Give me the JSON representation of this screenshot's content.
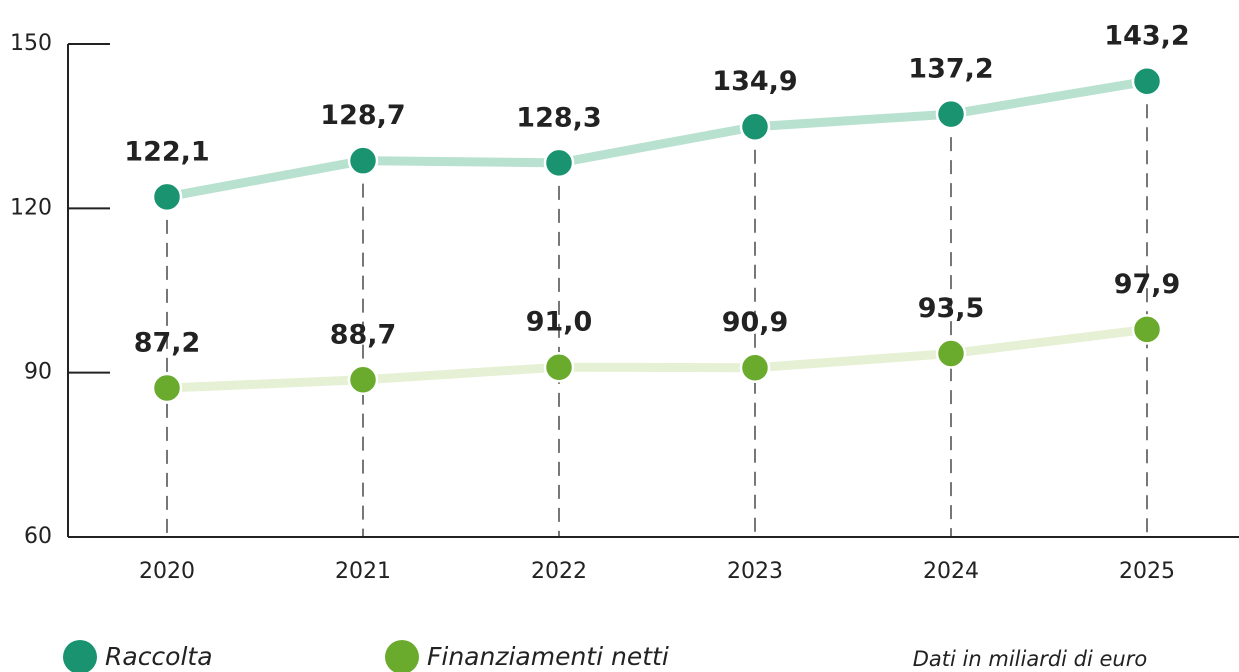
{
  "chart_data": {
    "type": "line",
    "categories": [
      "2020",
      "2021",
      "2022",
      "2023",
      "2024",
      "2025"
    ],
    "series": [
      {
        "name": "Raccolta",
        "color": "#1a9370",
        "line_color": "#b9e1d0",
        "values": [
          122.1,
          128.7,
          128.3,
          134.9,
          137.2,
          143.2
        ],
        "value_labels": [
          "122,1",
          "128,7",
          "128,3",
          "134,9",
          "137,2",
          "143,2"
        ]
      },
      {
        "name": "Finanziamenti netti",
        "color": "#6aab2e",
        "line_color": "#e6f0d5",
        "values": [
          87.2,
          88.7,
          91.0,
          90.9,
          93.5,
          97.9
        ],
        "value_labels": [
          "87,2",
          "88,7",
          "91,0",
          "90,9",
          "93,5",
          "97,9"
        ]
      }
    ],
    "ylim": [
      60,
      150
    ],
    "yticks": [
      60,
      90,
      120,
      150
    ],
    "note": "Dati in miliardi di euro"
  }
}
